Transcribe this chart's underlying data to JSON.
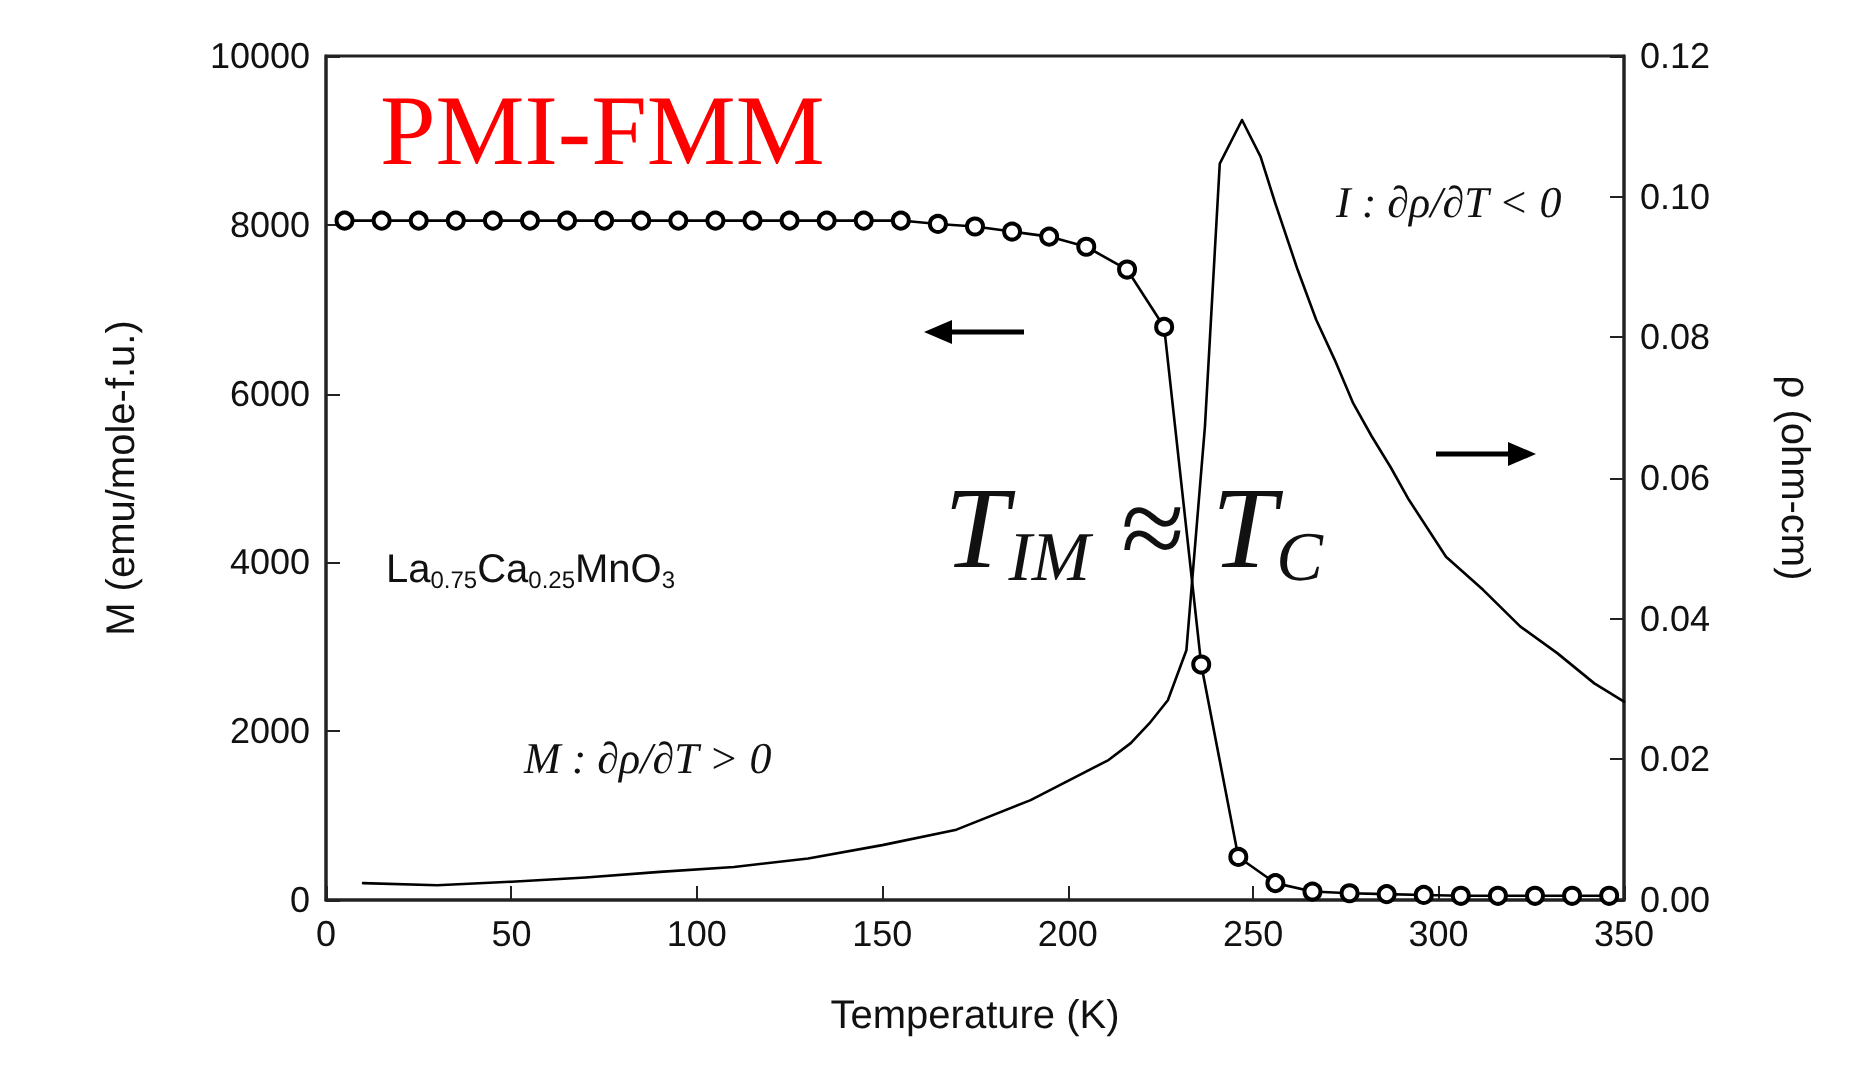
{
  "chart_data": {
    "type": "line",
    "xlabel": "Temperature (K)",
    "ylabel": "M (emu/mole-f.u.)",
    "y2label": "ρ (ohm-cm)",
    "xlim": [
      0,
      350
    ],
    "xticks": [
      0,
      50,
      100,
      150,
      200,
      250,
      300,
      350
    ],
    "ylim": [
      0,
      10000
    ],
    "yticks": [
      0,
      2000,
      4000,
      6000,
      8000,
      10000
    ],
    "y2lim": [
      0,
      0.12
    ],
    "y2ticks": [
      {
        "value": 0,
        "label": "0.00"
      },
      {
        "value": 0.02,
        "label": "0.02"
      },
      {
        "value": 0.04,
        "label": "0.04"
      },
      {
        "value": 0.06,
        "label": "0.06"
      },
      {
        "value": 0.08,
        "label": "0.08"
      },
      {
        "value": 0.1,
        "label": "0.10"
      },
      {
        "value": 0.12,
        "label": "0.12"
      }
    ],
    "series": [
      {
        "color": "#000000",
        "marker": "circle",
        "x": [
          5,
          15,
          25,
          35,
          45,
          55,
          65,
          75,
          85,
          95,
          105,
          115,
          125,
          135,
          145,
          155,
          165,
          175,
          185,
          195,
          205,
          216,
          226,
          236,
          246,
          256,
          266,
          276,
          286,
          296,
          306,
          316,
          326,
          336,
          346
        ],
        "values": [
          8050,
          8050,
          8050,
          8050,
          8050,
          8050,
          8050,
          8050,
          8050,
          8050,
          8050,
          8050,
          8050,
          8050,
          8050,
          8050,
          8010,
          7980,
          7920,
          7860,
          7740,
          7470,
          6790,
          2790,
          510,
          200,
          100,
          80,
          70,
          60,
          50,
          50,
          50,
          50,
          50
        ]
      },
      {
        "color": "#000000",
        "marker": "none",
        "axis": "y2",
        "x": [
          10,
          30,
          50,
          70,
          90,
          110,
          130,
          150,
          170,
          190,
          211,
          217,
          222,
          227,
          232,
          237,
          241,
          247,
          252,
          256,
          262,
          267,
          272,
          277,
          282,
          287,
          292,
          302,
          312,
          322,
          332,
          342,
          350
        ],
        "values": [
          0.0024,
          0.0021,
          0.0026,
          0.0032,
          0.004,
          0.0047,
          0.0059,
          0.0078,
          0.01,
          0.0142,
          0.0199,
          0.0223,
          0.0251,
          0.0284,
          0.0355,
          0.0673,
          0.1047,
          0.1109,
          0.1057,
          0.099,
          0.0896,
          0.0825,
          0.0768,
          0.0706,
          0.0659,
          0.0616,
          0.0569,
          0.0488,
          0.0441,
          0.0389,
          0.0351,
          0.0308,
          0.0282
        ]
      }
    ],
    "annotations": [
      "PMI-FMM",
      "La$_{0.75}$Ca$_{0.25}$MnO$_{3}$",
      "M : ∂ρ/∂T > 0",
      "I : ∂ρ/∂T < 0",
      "T$_{IM}$ ≈ T$_{C}$"
    ]
  }
}
